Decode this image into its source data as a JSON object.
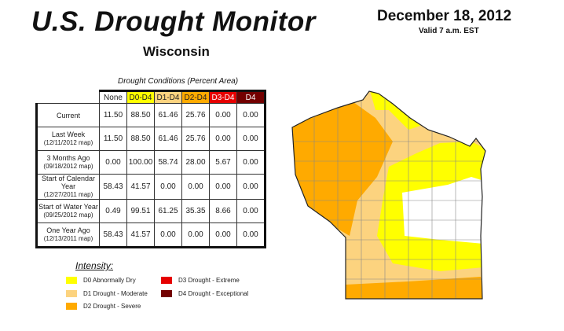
{
  "header": {
    "title": "U.S. Drought Monitor",
    "date": "December 18, 2012",
    "valid": "Valid 7 a.m. EST",
    "state": "Wisconsin"
  },
  "table": {
    "caption": "Drought Conditions (Percent Area)",
    "columns": [
      {
        "label": "None",
        "color": "#ffffff"
      },
      {
        "label": "D0-D4",
        "color": "#ffff00"
      },
      {
        "label": "D1-D4",
        "color": "#fcd37f"
      },
      {
        "label": "D2-D4",
        "color": "#ffaa00"
      },
      {
        "label": "D3-D4",
        "color": "#e60000"
      },
      {
        "label": "D4",
        "color": "#730000"
      }
    ],
    "rows": [
      {
        "label": "Current",
        "sub": "",
        "values": [
          "11.50",
          "88.50",
          "61.46",
          "25.76",
          "0.00",
          "0.00"
        ]
      },
      {
        "label": "Last Week",
        "sub": "(12/11/2012 map)",
        "values": [
          "11.50",
          "88.50",
          "61.46",
          "25.76",
          "0.00",
          "0.00"
        ]
      },
      {
        "label": "3 Months Ago",
        "sub": "(09/18/2012 map)",
        "values": [
          "0.00",
          "100.00",
          "58.74",
          "28.00",
          "5.67",
          "0.00"
        ]
      },
      {
        "label": "Start of Calendar Year",
        "sub": "(12/27/2011 map)",
        "values": [
          "58.43",
          "41.57",
          "0.00",
          "0.00",
          "0.00",
          "0.00"
        ]
      },
      {
        "label": "Start of Water Year",
        "sub": "(09/25/2012 map)",
        "values": [
          "0.49",
          "99.51",
          "61.25",
          "35.35",
          "8.66",
          "0.00"
        ]
      },
      {
        "label": "One Year Ago",
        "sub": "(12/13/2011 map)",
        "values": [
          "58.43",
          "41.57",
          "0.00",
          "0.00",
          "0.00",
          "0.00"
        ]
      }
    ]
  },
  "legend": {
    "title": "Intensity:",
    "items": [
      {
        "label": "D0 Abnormally Dry",
        "color": "#ffff00"
      },
      {
        "label": "D1 Drought - Moderate",
        "color": "#fcd37f"
      },
      {
        "label": "D2 Drought - Severe",
        "color": "#ffaa00"
      },
      {
        "label": "D3 Drought - Extreme",
        "color": "#e60000"
      },
      {
        "label": "D4 Drought - Exceptional",
        "color": "#730000"
      }
    ]
  }
}
